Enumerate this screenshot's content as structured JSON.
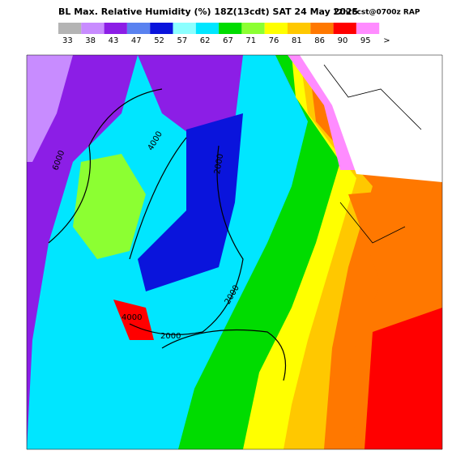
{
  "header": {
    "title": "BL Max. Relative Humidity (%) 18Z(13cdt) SAT 24 May 2025",
    "subtitle": "12hrFcst@0700z RAP"
  },
  "legend": {
    "items": [
      {
        "label": "33",
        "color": "#b4b4b4"
      },
      {
        "label": "38",
        "color": "#c88cff"
      },
      {
        "label": "43",
        "color": "#8c1ee6"
      },
      {
        "label": "47",
        "color": "#5a82f0"
      },
      {
        "label": "52",
        "color": "#0a14dc"
      },
      {
        "label": "57",
        "color": "#8cffff"
      },
      {
        "label": "62",
        "color": "#00e6ff"
      },
      {
        "label": "67",
        "color": "#00dc00"
      },
      {
        "label": "71",
        "color": "#8cff32"
      },
      {
        "label": "76",
        "color": "#ffff00"
      },
      {
        "label": "81",
        "color": "#ffc800"
      },
      {
        "label": "86",
        "color": "#ff7800"
      },
      {
        "label": "90",
        "color": "#ff0000"
      },
      {
        "label": "95",
        "color": "#ff8cff"
      }
    ],
    "more": ">"
  },
  "contours": {
    "labels": [
      "6000",
      "4000",
      "2000",
      "2000",
      "4000",
      "2000"
    ]
  }
}
